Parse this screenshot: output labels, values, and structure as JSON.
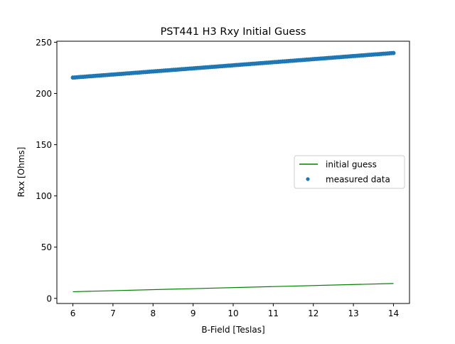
{
  "chart_data": {
    "type": "scatter",
    "title": "PST441 H3 Rxy Initial Guess",
    "xlabel": "B-Field [Teslas]",
    "ylabel": "Rxx [Ohms]",
    "xlim": [
      5.6,
      14.4
    ],
    "ylim": [
      -5,
      251
    ],
    "xticks": [
      6,
      7,
      8,
      9,
      10,
      11,
      12,
      13,
      14
    ],
    "yticks": [
      0,
      50,
      100,
      150,
      200,
      250
    ],
    "grid": false,
    "legend_position": "center-right",
    "series": [
      {
        "name": "initial guess",
        "kind": "line",
        "color": "#008000",
        "x": [
          6,
          14
        ],
        "y": [
          6.5,
          14.5
        ]
      },
      {
        "name": "measured data",
        "kind": "scatter",
        "color": "#1f77b4",
        "x_start": 6.0,
        "x_end": 14.0,
        "y_start": 215.5,
        "y_end": 239.5,
        "n_points": 160
      }
    ]
  }
}
